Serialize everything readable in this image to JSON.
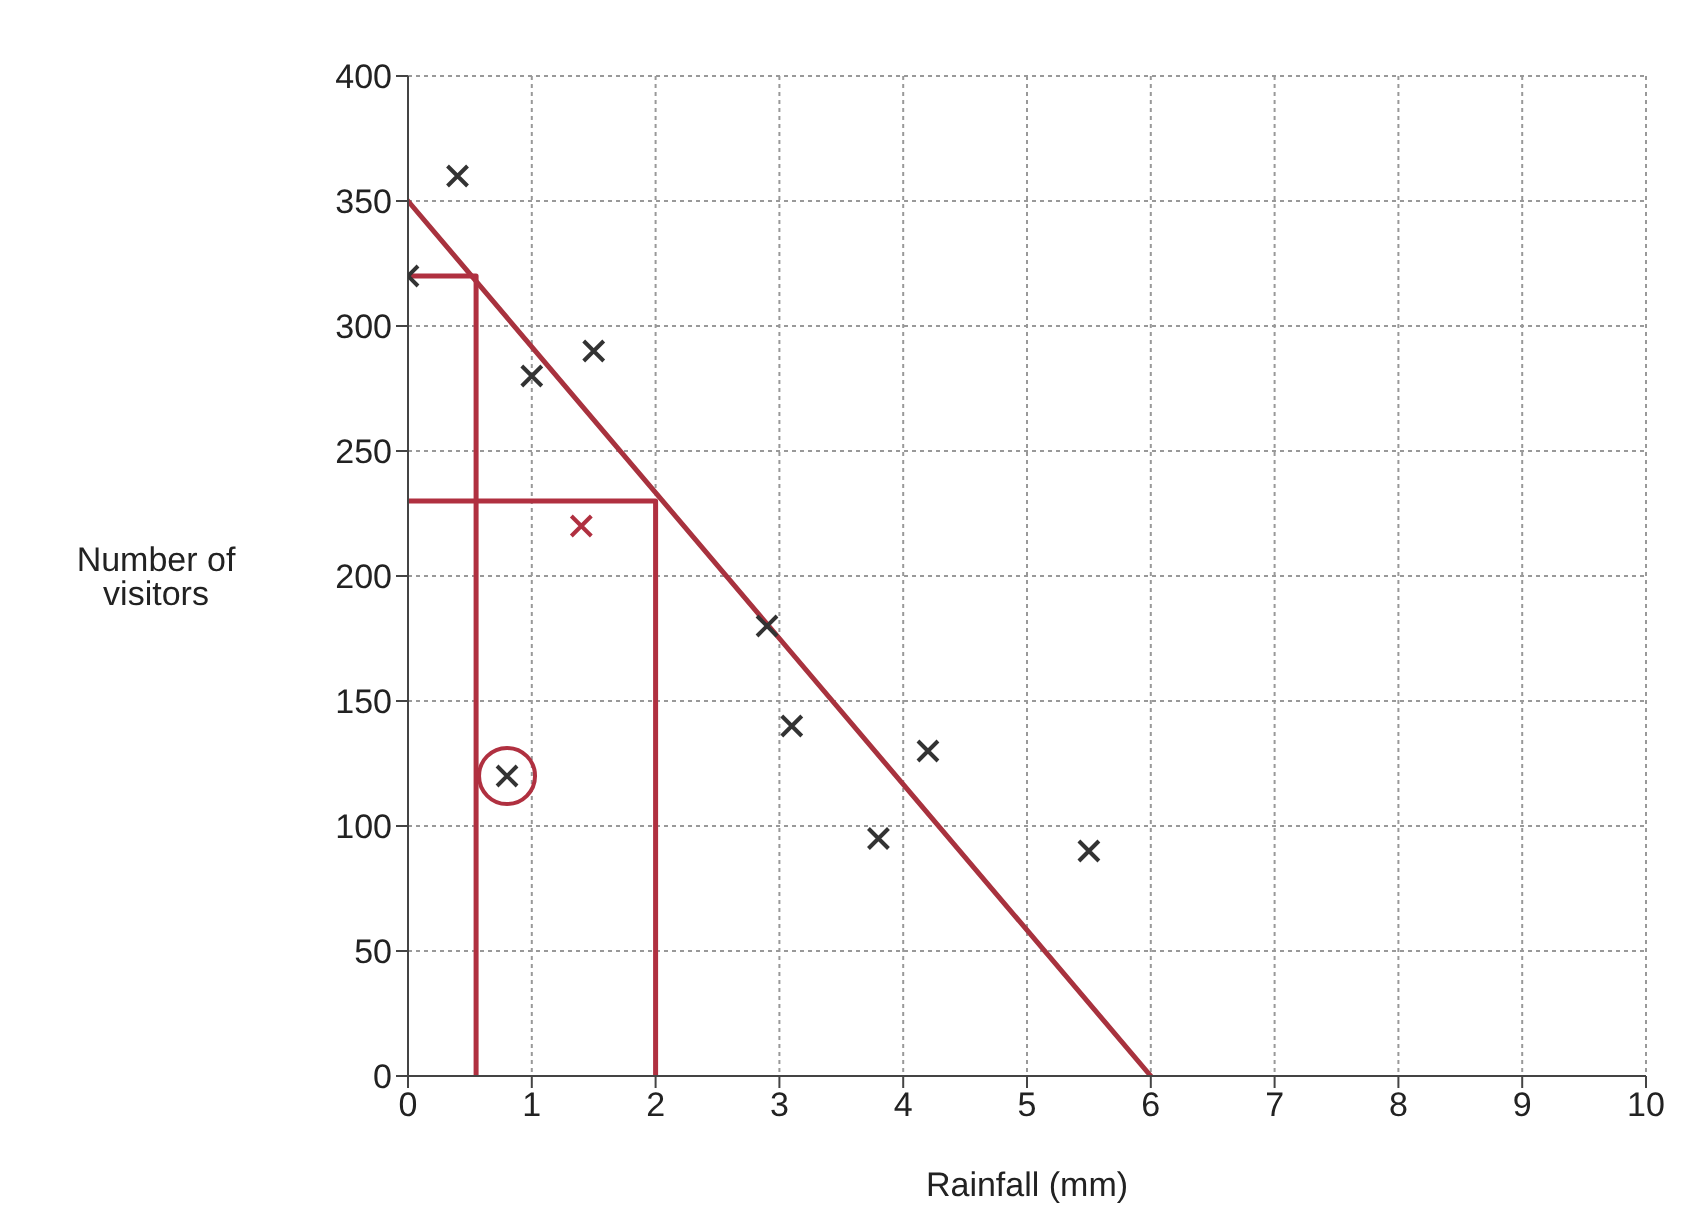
{
  "chart_data": {
    "type": "scatter",
    "xlabel": "Rainfall (mm)",
    "ylabel": "Number of visitors",
    "xlim": [
      0,
      10
    ],
    "xticks": [
      0,
      1,
      2,
      3,
      4,
      5,
      6,
      7,
      8,
      9,
      10
    ],
    "ylim": [
      0,
      400
    ],
    "yticks": [
      0,
      50,
      100,
      150,
      200,
      250,
      300,
      350,
      400
    ],
    "grid": true,
    "series": [
      {
        "marker": "cross",
        "color": "#333333",
        "x": [
          0,
          0.4,
          1,
          1.5,
          0.8,
          2.9,
          3.1,
          3.8,
          4.2,
          5.5
        ],
        "values": [
          320,
          360,
          280,
          290,
          120,
          180,
          140,
          95,
          130,
          90
        ]
      },
      {
        "marker": "cross",
        "color": "#b03040",
        "x": [
          1.4
        ],
        "values": [
          220
        ]
      },
      {
        "marker": "circle",
        "color": "#b03040",
        "x": [
          0.8
        ],
        "values": [
          120
        ]
      },
      {
        "type": "line",
        "color": "#a8323e",
        "x": [
          0,
          6
        ],
        "values": [
          350,
          0
        ]
      },
      {
        "type": "line",
        "color": "#b03040",
        "x": [
          0,
          0.55,
          0.55
        ],
        "values": [
          320,
          320,
          0
        ]
      },
      {
        "type": "line",
        "color": "#b03040",
        "x": [
          2,
          2,
          0
        ],
        "values": [
          0,
          230,
          230
        ]
      }
    ]
  }
}
